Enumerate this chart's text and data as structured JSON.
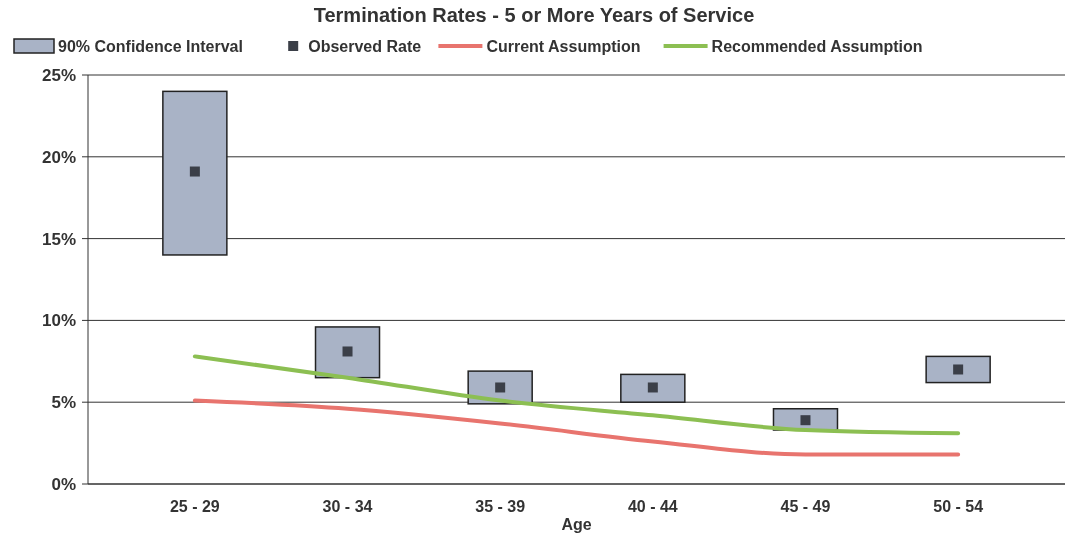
{
  "chart_data": {
    "type": "bar",
    "title": "Termination Rates - 5 or More Years of Service",
    "xlabel": "Age",
    "categories": [
      "25 - 29",
      "30 - 34",
      "35 - 39",
      "40 - 44",
      "45 - 49",
      "50 - 54"
    ],
    "ylim": [
      0,
      25
    ],
    "yticks": [
      {
        "value": 0,
        "label": "0%"
      },
      {
        "value": 5,
        "label": "5%"
      },
      {
        "value": 10,
        "label": "10%"
      },
      {
        "value": 15,
        "label": "15%"
      },
      {
        "value": 20,
        "label": "20%"
      },
      {
        "value": 25,
        "label": "25%"
      }
    ],
    "grid": "y",
    "legend": "top",
    "series": [
      {
        "name": "90% Confidence Interval",
        "color": "#a9b3c6",
        "base": [
          14,
          6.5,
          4.9,
          5.0,
          3.3,
          6.2
        ],
        "values": [
          10,
          3.1,
          2.0,
          1.7,
          1.3,
          1.6
        ]
      },
      {
        "name": "Observed Rate",
        "type": "scatter",
        "marker": "square",
        "color": "#3b3f48",
        "values": [
          19.1,
          8.1,
          5.9,
          5.9,
          3.9,
          7.0
        ]
      },
      {
        "name": "Current Assumption",
        "type": "line",
        "color": "#e8746e",
        "values": [
          5.1,
          4.6,
          3.7,
          2.6,
          1.8,
          1.8
        ]
      },
      {
        "name": "Recommended Assumption",
        "type": "line",
        "color": "#8cbf52",
        "values": [
          7.8,
          6.5,
          5.1,
          4.2,
          3.3,
          3.1
        ]
      }
    ]
  }
}
